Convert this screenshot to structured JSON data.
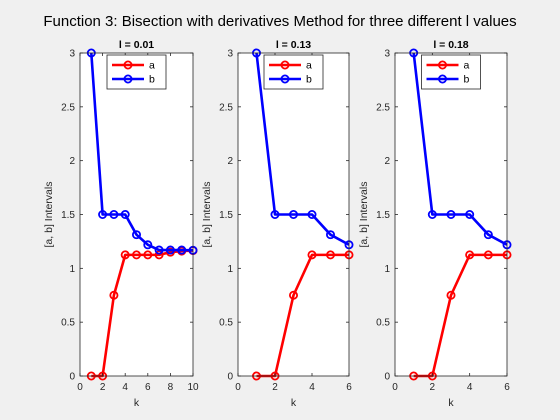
{
  "figure_title": "Function 3: Bisection with derivatives Method for three different l values",
  "colors": {
    "a": "#ff0000",
    "b": "#0000ff",
    "axes": "#262626",
    "background": "#f0f0f0",
    "plot_bg": "#ffffff"
  },
  "chart_data": [
    {
      "type": "line",
      "title": "l = 0.01",
      "xlabel": "k",
      "ylabel": "[a, b] Intervals",
      "xlim": [
        0,
        10
      ],
      "ylim": [
        0,
        3
      ],
      "xticks": [
        0,
        2,
        4,
        6,
        8,
        10
      ],
      "yticks": [
        0,
        0.5,
        1,
        1.5,
        2,
        2.5,
        3
      ],
      "legend": "top",
      "x": [
        1,
        2,
        3,
        4,
        5,
        6,
        7,
        8,
        9,
        10
      ],
      "series": [
        {
          "name": "a",
          "color": "#ff0000",
          "values": [
            0,
            0,
            0.75,
            1.125,
            1.125,
            1.125,
            1.125,
            1.15,
            1.16,
            1.165
          ]
        },
        {
          "name": "b",
          "color": "#0000ff",
          "values": [
            3,
            1.5,
            1.5,
            1.5,
            1.3125,
            1.21875,
            1.17,
            1.17,
            1.17,
            1.168
          ]
        }
      ]
    },
    {
      "type": "line",
      "title": "l = 0.13",
      "xlabel": "k",
      "ylabel": "[a, b] Intervals",
      "xlim": [
        0,
        6
      ],
      "ylim": [
        0,
        3
      ],
      "xticks": [
        0,
        2,
        4,
        6
      ],
      "yticks": [
        0,
        0.5,
        1,
        1.5,
        2,
        2.5,
        3
      ],
      "legend": "top",
      "x": [
        1,
        2,
        3,
        4,
        5,
        6
      ],
      "series": [
        {
          "name": "a",
          "color": "#ff0000",
          "values": [
            0,
            0,
            0.75,
            1.125,
            1.125,
            1.125
          ]
        },
        {
          "name": "b",
          "color": "#0000ff",
          "values": [
            3,
            1.5,
            1.5,
            1.5,
            1.3125,
            1.21875
          ]
        }
      ]
    },
    {
      "type": "line",
      "title": "l = 0.18",
      "xlabel": "k",
      "ylabel": "[a, b] Intervals",
      "xlim": [
        0,
        6
      ],
      "ylim": [
        0,
        3
      ],
      "xticks": [
        0,
        2,
        4,
        6
      ],
      "yticks": [
        0,
        0.5,
        1,
        1.5,
        2,
        2.5,
        3
      ],
      "legend": "top",
      "x": [
        1,
        2,
        3,
        4,
        5,
        6
      ],
      "series": [
        {
          "name": "a",
          "color": "#ff0000",
          "values": [
            0,
            0,
            0.75,
            1.125,
            1.125,
            1.125
          ]
        },
        {
          "name": "b",
          "color": "#0000ff",
          "values": [
            3,
            1.5,
            1.5,
            1.5,
            1.3125,
            1.21875
          ]
        }
      ]
    }
  ]
}
